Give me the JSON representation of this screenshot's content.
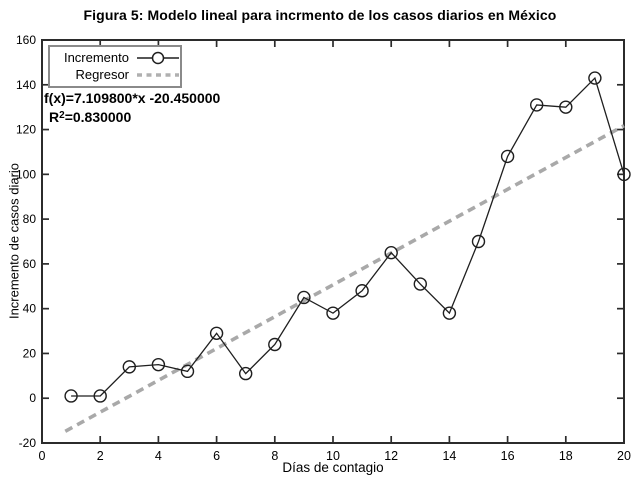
{
  "chart_data": {
    "type": "line",
    "title": "Figura 5: Modelo lineal para incrmento de los casos diarios en México",
    "xlabel": "Días de contagio",
    "ylabel": "Incremento de casos diario",
    "xlim": [
      0,
      20
    ],
    "ylim": [
      -20,
      160
    ],
    "xticks": [
      0,
      2,
      4,
      6,
      8,
      10,
      12,
      14,
      16,
      18,
      20
    ],
    "yticks": [
      -20,
      0,
      20,
      40,
      60,
      80,
      100,
      120,
      140,
      160
    ],
    "grid": false,
    "legend_position": "top-left",
    "x": [
      1,
      2,
      3,
      4,
      5,
      6,
      7,
      8,
      9,
      10,
      11,
      12,
      13,
      14,
      15,
      16,
      17,
      18,
      19,
      20
    ],
    "series": [
      {
        "name": "Incremento",
        "type": "line+marker",
        "marker": "open-circle",
        "color": "#1f1f1f",
        "values": [
          1,
          1,
          14,
          15,
          12,
          29,
          11,
          24,
          45,
          38,
          48,
          65,
          51,
          38,
          70,
          108,
          131,
          130,
          143,
          100
        ]
      },
      {
        "name": "Regresor",
        "type": "dashed-line",
        "color": "#a9a9a9",
        "slope": 7.1098,
        "intercept": -20.45,
        "x_start": 0.8,
        "x_end": 20
      }
    ],
    "annotation": {
      "line1": "f(x)=7.109800*x -20.450000",
      "r2_label": "R",
      "r2_exponent": "2",
      "r2_value": "=0.830000"
    }
  },
  "colors": {
    "axis": "#2b2b2b",
    "data_line": "#1f1f1f",
    "regressor": "#a9a9a9",
    "legend_border": "#8a8a8a",
    "legend_dash": "#b0b0b0",
    "background": "#ffffff",
    "text": "#000000"
  }
}
